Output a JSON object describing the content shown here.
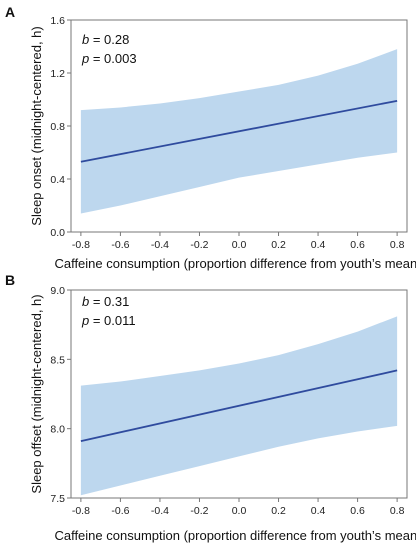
{
  "chart_data": [
    {
      "type": "line",
      "panel": "A",
      "xlabel": "Caffeine consumption (proportion difference from youth’s mean)",
      "ylabel": "Sleep onset (midnight-centered, h)",
      "xlim": [
        -0.85,
        0.85
      ],
      "ylim": [
        0.0,
        1.6
      ],
      "xticks": [
        "-0.8",
        "-0.6",
        "-0.4",
        "-0.2",
        "0.0",
        "0.2",
        "0.4",
        "0.6",
        "0.8"
      ],
      "yticks": [
        "0.0",
        "0.4",
        "0.8",
        "1.2",
        "1.6"
      ],
      "annotation": {
        "b_symbol": "b",
        "b_text": " = 0.28",
        "p_symbol": "p",
        "p_text": "  = 0.003"
      },
      "series": [
        {
          "x": [
            -0.8,
            0.8
          ],
          "y": [
            0.53,
            0.99
          ],
          "band_x": [
            -0.8,
            -0.6,
            -0.4,
            -0.2,
            0.0,
            0.2,
            0.4,
            0.6,
            0.8
          ],
          "band_upper": [
            0.92,
            0.94,
            0.97,
            1.01,
            1.06,
            1.11,
            1.18,
            1.27,
            1.38
          ],
          "band_lower": [
            0.14,
            0.2,
            0.27,
            0.34,
            0.41,
            0.46,
            0.51,
            0.56,
            0.6
          ]
        }
      ],
      "grid": false
    },
    {
      "type": "line",
      "panel": "B",
      "xlabel": "Caffeine consumption (proportion difference from youth’s mean)",
      "ylabel": "Sleep offset (midnight-centered, h)",
      "xlim": [
        -0.85,
        0.85
      ],
      "ylim": [
        7.5,
        9.0
      ],
      "xticks": [
        "-0.8",
        "-0.6",
        "-0.4",
        "-0.2",
        "0.0",
        "0.2",
        "0.4",
        "0.6",
        "0.8"
      ],
      "yticks": [
        "7.5",
        "8.0",
        "8.5",
        "9.0"
      ],
      "annotation": {
        "b_symbol": "b",
        "b_text": " = 0.31",
        "p_symbol": "p",
        "p_text": "  = 0.011"
      },
      "series": [
        {
          "x": [
            -0.8,
            0.8
          ],
          "y": [
            7.91,
            8.42
          ],
          "band_x": [
            -0.8,
            -0.6,
            -0.4,
            -0.2,
            0.0,
            0.2,
            0.4,
            0.6,
            0.8
          ],
          "band_upper": [
            8.31,
            8.34,
            8.38,
            8.42,
            8.47,
            8.53,
            8.61,
            8.7,
            8.81
          ],
          "band_lower": [
            7.52,
            7.59,
            7.66,
            7.73,
            7.8,
            7.87,
            7.93,
            7.98,
            8.02
          ]
        }
      ],
      "grid": false
    }
  ],
  "colors": {
    "band": "#bdd7ee",
    "line": "#2f4b9e",
    "frame": "#777777",
    "text": "#111111"
  }
}
